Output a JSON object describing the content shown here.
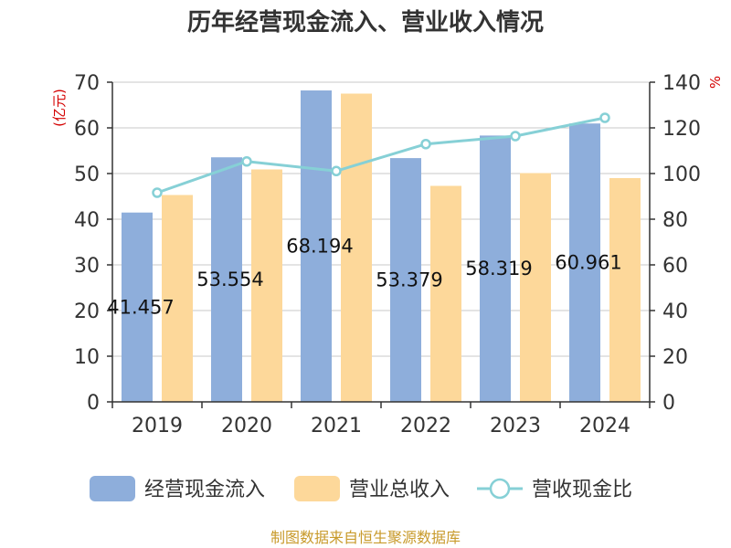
{
  "title": "历年经营现金流入、营业收入情况",
  "source": "制图数据来自恒生聚源数据库",
  "chart_data": {
    "type": "bar",
    "title": "历年经营现金流入、营业收入情况",
    "categories": [
      "2019",
      "2020",
      "2021",
      "2022",
      "2023",
      "2024"
    ],
    "series": [
      {
        "name": "经营现金流入",
        "kind": "bar",
        "axis": "left",
        "color": "#8eaedb",
        "values": [
          41.457,
          53.554,
          68.194,
          53.379,
          58.319,
          60.961
        ],
        "labels": [
          "41.457",
          "53.554",
          "68.194",
          "53.379",
          "58.319",
          "60.961"
        ]
      },
      {
        "name": "营业总收入",
        "kind": "bar",
        "axis": "left",
        "color": "#fdd89a",
        "values": [
          45.3,
          50.9,
          67.5,
          47.3,
          50.1,
          49.0
        ]
      },
      {
        "name": "营收现金比",
        "kind": "line",
        "axis": "right",
        "color": "#86d0d6",
        "values": [
          91.6,
          105.3,
          101.1,
          112.9,
          116.4,
          124.4
        ]
      }
    ],
    "left_axis": {
      "unit": "(亿元)",
      "min": 0,
      "max": 70,
      "ticks": [
        "0",
        "10",
        "20",
        "30",
        "40",
        "50",
        "60",
        "70"
      ]
    },
    "right_axis": {
      "unit": "%",
      "min": 0,
      "max": 140,
      "ticks": [
        "0",
        "20",
        "40",
        "60",
        "80",
        "100",
        "120",
        "140"
      ]
    },
    "legend_position": "bottom"
  }
}
